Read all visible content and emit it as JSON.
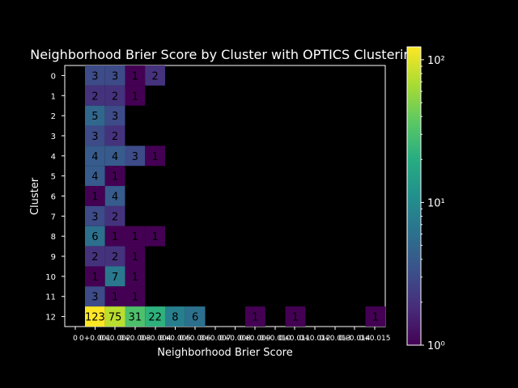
{
  "chart_data": {
    "type": "heatmap",
    "title": "Neighborhood Brier Score by Cluster with OPTICS Clustering",
    "xlabel": "Neighborhood Brier Score",
    "ylabel": "Cluster",
    "y_categories": [
      "0",
      "1",
      "2",
      "3",
      "4",
      "5",
      "6",
      "7",
      "8",
      "9",
      "10",
      "11",
      "12"
    ],
    "x_tick_labels": [
      "0",
      "0+0.001",
      "0+0.002",
      "0+0.003",
      "0+0.004",
      "0+0.005",
      "0+0.006",
      "0+0.007",
      "0+0.008",
      "0+0.009",
      "0+0.010",
      "0+0.011",
      "0+0.012",
      "0+0.013",
      "0+0.014",
      "0+0.015"
    ],
    "bin_count": 15,
    "cells": [
      {
        "row": 0,
        "col": 0,
        "value": 3
      },
      {
        "row": 0,
        "col": 1,
        "value": 3
      },
      {
        "row": 0,
        "col": 2,
        "value": 1
      },
      {
        "row": 0,
        "col": 3,
        "value": 2
      },
      {
        "row": 1,
        "col": 0,
        "value": 2
      },
      {
        "row": 1,
        "col": 1,
        "value": 2
      },
      {
        "row": 1,
        "col": 2,
        "value": 1
      },
      {
        "row": 2,
        "col": 0,
        "value": 5
      },
      {
        "row": 2,
        "col": 1,
        "value": 3
      },
      {
        "row": 3,
        "col": 0,
        "value": 3
      },
      {
        "row": 3,
        "col": 1,
        "value": 2
      },
      {
        "row": 4,
        "col": 0,
        "value": 4
      },
      {
        "row": 4,
        "col": 1,
        "value": 4
      },
      {
        "row": 4,
        "col": 2,
        "value": 3
      },
      {
        "row": 4,
        "col": 3,
        "value": 1
      },
      {
        "row": 5,
        "col": 0,
        "value": 4
      },
      {
        "row": 5,
        "col": 1,
        "value": 1
      },
      {
        "row": 6,
        "col": 0,
        "value": 1
      },
      {
        "row": 6,
        "col": 1,
        "value": 4
      },
      {
        "row": 7,
        "col": 0,
        "value": 3
      },
      {
        "row": 7,
        "col": 1,
        "value": 2
      },
      {
        "row": 8,
        "col": 0,
        "value": 6
      },
      {
        "row": 8,
        "col": 1,
        "value": 1
      },
      {
        "row": 8,
        "col": 2,
        "value": 1
      },
      {
        "row": 8,
        "col": 3,
        "value": 1
      },
      {
        "row": 9,
        "col": 0,
        "value": 2
      },
      {
        "row": 9,
        "col": 1,
        "value": 2
      },
      {
        "row": 9,
        "col": 2,
        "value": 1
      },
      {
        "row": 10,
        "col": 0,
        "value": 1
      },
      {
        "row": 10,
        "col": 1,
        "value": 7
      },
      {
        "row": 10,
        "col": 2,
        "value": 1
      },
      {
        "row": 11,
        "col": 0,
        "value": 3
      },
      {
        "row": 11,
        "col": 1,
        "value": 1
      },
      {
        "row": 11,
        "col": 2,
        "value": 1
      },
      {
        "row": 12,
        "col": 0,
        "value": 123
      },
      {
        "row": 12,
        "col": 1,
        "value": 75
      },
      {
        "row": 12,
        "col": 2,
        "value": 31
      },
      {
        "row": 12,
        "col": 3,
        "value": 22
      },
      {
        "row": 12,
        "col": 4,
        "value": 8
      },
      {
        "row": 12,
        "col": 5,
        "value": 6
      },
      {
        "row": 12,
        "col": 8,
        "value": 1
      },
      {
        "row": 12,
        "col": 10,
        "value": 1
      },
      {
        "row": 12,
        "col": 14,
        "value": 1
      }
    ],
    "colorbar": {
      "scale": "log",
      "min": 1,
      "max": 123,
      "tick_values": [
        1,
        10,
        100
      ],
      "tick_labels": [
        "10⁰",
        "10¹",
        "10²"
      ],
      "colormap": "viridis"
    },
    "background": "#000000",
    "grid": false
  }
}
